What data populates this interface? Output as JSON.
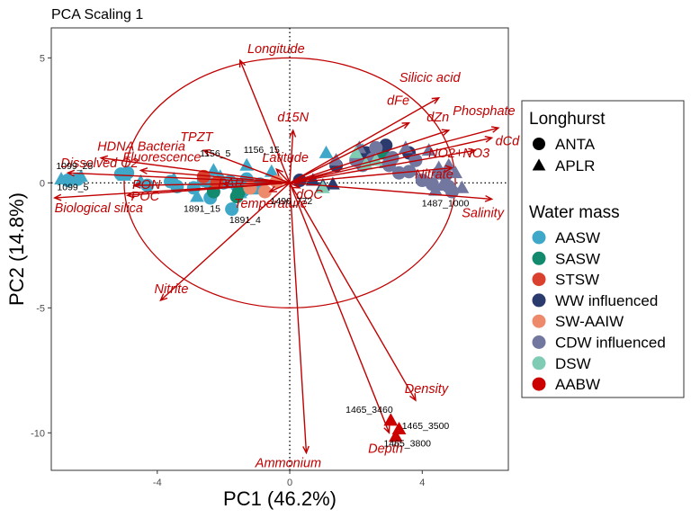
{
  "chart_data": {
    "type": "scatter",
    "title": "PCA Scaling 1",
    "xlabel": "PC1 (46.2%)",
    "ylabel": "PC2 (14.8%)",
    "xlim": [
      -7.2,
      6.6
    ],
    "ylim": [
      -11.5,
      6.2
    ],
    "x_ticks": [
      -4,
      0,
      4
    ],
    "y_ticks": [
      -10,
      -5,
      0,
      5
    ],
    "x_tick_labels": [
      "-4",
      "0",
      "4"
    ],
    "y_tick_labels": [
      "-10",
      "-5",
      "0",
      "5"
    ],
    "reference_lines": {
      "x": 0,
      "y": 0,
      "style": "dotted"
    },
    "grid": false,
    "legend_position": "right",
    "circle": {
      "center": [
        0,
        0
      ],
      "radius": 5.0,
      "color": "#c00000"
    },
    "legend": {
      "shape_title": "Longhurst",
      "shapes": [
        {
          "label": "ANTA",
          "shape": "circle"
        },
        {
          "label": "APLR",
          "shape": "triangle"
        }
      ],
      "color_title": "Water mass",
      "water_masses": [
        {
          "label": "AASW",
          "color": "#3fa8c8"
        },
        {
          "label": "SASW",
          "color": "#138a6e"
        },
        {
          "label": "STSW",
          "color": "#d9412e"
        },
        {
          "label": "WW influenced",
          "color": "#2c3b6e"
        },
        {
          "label": "SW-AAIW",
          "color": "#ee8a6c"
        },
        {
          "label": "CDW influenced",
          "color": "#7277a0"
        },
        {
          "label": "DSW",
          "color": "#7fcbb3"
        },
        {
          "label": "AABW",
          "color": "#cc0000"
        }
      ]
    },
    "loadings": [
      {
        "label": "Longitude",
        "x": -1.5,
        "y": 4.9
      },
      {
        "label": "Silicic acid",
        "x": 4.5,
        "y": 3.4
      },
      {
        "label": "dFe",
        "x": 3.6,
        "y": 2.4
      },
      {
        "label": "dZn",
        "x": 4.8,
        "y": 2.1
      },
      {
        "label": "Phosphate",
        "x": 6.3,
        "y": 2.2
      },
      {
        "label": "dCd",
        "x": 6.1,
        "y": 1.8
      },
      {
        "label": "NO2+NO3",
        "x": 5.6,
        "y": 1.3
      },
      {
        "label": "Nitrate",
        "x": 4.9,
        "y": 0.6
      },
      {
        "label": "Salinity",
        "x": 6.1,
        "y": -0.65
      },
      {
        "label": "d15N",
        "x": 0.1,
        "y": 2.1
      },
      {
        "label": "TPZT",
        "x": -2.6,
        "y": 1.3
      },
      {
        "label": "HDNA Bacteria",
        "x": -5.7,
        "y": 1.0
      },
      {
        "label": "Fluorescence",
        "x": -4.5,
        "y": 0.5
      },
      {
        "label": "Dissolved O2",
        "x": -6.7,
        "y": 0.4
      },
      {
        "label": "Latitude",
        "x": -0.4,
        "y": 0.55
      },
      {
        "label": "PON",
        "x": -4.7,
        "y": -0.1
      },
      {
        "label": "PAR",
        "x": -2.0,
        "y": -0.05
      },
      {
        "label": "POC",
        "x": -4.9,
        "y": -0.5
      },
      {
        "label": "Biological silica",
        "x": -7.1,
        "y": -0.6
      },
      {
        "label": "Temperature",
        "x": -0.6,
        "y": -0.35
      },
      {
        "label": "dOC",
        "x": 0.3,
        "y": -0.2
      },
      {
        "label": "Nitrite",
        "x": -3.9,
        "y": -4.7
      },
      {
        "label": "Density",
        "x": 3.8,
        "y": -8.7
      },
      {
        "label": "Depth",
        "x": 3.0,
        "y": -10.0
      },
      {
        "label": "Ammonium",
        "x": 0.5,
        "y": -10.8
      }
    ],
    "point_labels": [
      {
        "text": "1099_25",
        "x": -6.5,
        "y": 0.55
      },
      {
        "text": "1099_5",
        "x": -6.55,
        "y": -0.3
      },
      {
        "text": "1156_5",
        "x": -2.25,
        "y": 1.05
      },
      {
        "text": "1156_15",
        "x": -0.85,
        "y": 1.2
      },
      {
        "text": "1891_15",
        "x": -2.65,
        "y": -1.15
      },
      {
        "text": "1891_4",
        "x": -1.35,
        "y": -1.6
      },
      {
        "text": "1496_772",
        "x": 0.05,
        "y": -0.85
      },
      {
        "text": "1487_1000",
        "x": 4.7,
        "y": -0.95
      },
      {
        "text": "1465_3460",
        "x": 2.4,
        "y": -9.2
      },
      {
        "text": "1465_3500",
        "x": 4.1,
        "y": -9.85
      },
      {
        "text": "1465_3800",
        "x": 3.55,
        "y": -10.55
      }
    ],
    "series": [
      {
        "water_mass": "AASW",
        "shape": "circle",
        "points": [
          [
            -6.7,
            0.1
          ],
          [
            -6.4,
            0.15
          ],
          [
            -5.1,
            0.35
          ],
          [
            -4.9,
            0.4
          ],
          [
            -4.3,
            -0.1
          ],
          [
            -3.6,
            0.05
          ],
          [
            -3.4,
            -0.15
          ],
          [
            -2.9,
            -0.2
          ],
          [
            -2.6,
            0.1
          ],
          [
            -2.4,
            -0.05
          ],
          [
            -2.0,
            0.0
          ],
          [
            -1.8,
            0.05
          ],
          [
            -1.6,
            -0.1
          ],
          [
            -1.3,
            0.15
          ],
          [
            -0.9,
            -0.05
          ],
          [
            -1.75,
            -1.05
          ],
          [
            -2.4,
            -0.6
          ],
          [
            -1.4,
            -0.3
          ]
        ]
      },
      {
        "water_mass": "AASW",
        "shape": "triangle",
        "points": [
          [
            -6.9,
            0.15
          ],
          [
            -6.3,
            0.25
          ],
          [
            -5.0,
            0.3
          ],
          [
            -4.5,
            0.05
          ],
          [
            -3.5,
            0.15
          ],
          [
            -2.8,
            -0.55
          ],
          [
            -2.3,
            0.5
          ],
          [
            -2.1,
            0.25
          ],
          [
            -1.5,
            -0.4
          ],
          [
            -1.3,
            0.7
          ],
          [
            -1.1,
            -0.25
          ],
          [
            -0.55,
            0.45
          ],
          [
            1.1,
            1.2
          ],
          [
            2.2,
            1.3
          ]
        ]
      },
      {
        "water_mass": "SASW",
        "shape": "circle",
        "points": [
          [
            -2.3,
            -0.35
          ],
          [
            -1.6,
            -0.55
          ],
          [
            -1.55,
            -0.4
          ],
          [
            2.8,
            1.2
          ]
        ]
      },
      {
        "water_mass": "STSW",
        "shape": "circle",
        "points": [
          [
            -2.6,
            0.25
          ],
          [
            -2.2,
            0.0
          ]
        ]
      },
      {
        "water_mass": "WW influenced",
        "shape": "circle",
        "points": [
          [
            0.3,
            0.1
          ],
          [
            1.4,
            0.7
          ],
          [
            2.3,
            1.2
          ],
          [
            2.9,
            1.5
          ],
          [
            3.6,
            1.2
          ]
        ]
      },
      {
        "water_mass": "WW influenced",
        "shape": "triangle",
        "points": [
          [
            0.7,
            0.1
          ],
          [
            1.0,
            -0.1
          ],
          [
            1.3,
            -0.05
          ]
        ]
      },
      {
        "water_mass": "SW-AAIW",
        "shape": "circle",
        "points": [
          [
            -1.2,
            -0.2
          ],
          [
            -0.75,
            -0.35
          ],
          [
            -0.4,
            0.05
          ]
        ]
      },
      {
        "water_mass": "CDW influenced",
        "shape": "circle",
        "points": [
          [
            2.0,
            0.9
          ],
          [
            2.2,
            0.7
          ],
          [
            2.5,
            0.95
          ],
          [
            3.0,
            0.7
          ],
          [
            3.3,
            0.4
          ],
          [
            3.6,
            0.45
          ],
          [
            3.8,
            0.9
          ],
          [
            4.0,
            0.1
          ],
          [
            4.3,
            -0.05
          ],
          [
            4.5,
            0.4
          ],
          [
            4.7,
            0.3
          ],
          [
            4.8,
            -0.15
          ],
          [
            4.9,
            -0.35
          ],
          [
            3.1,
            1.0
          ],
          [
            2.6,
            1.4
          ]
        ]
      },
      {
        "water_mass": "CDW influenced",
        "shape": "triangle",
        "points": [
          [
            1.4,
            0.9
          ],
          [
            2.1,
            1.4
          ],
          [
            2.9,
            0.8
          ],
          [
            3.5,
            1.4
          ],
          [
            4.2,
            1.3
          ],
          [
            4.5,
            0.6
          ],
          [
            4.6,
            -0.1
          ],
          [
            4.8,
            0.7
          ],
          [
            5.0,
            0.4
          ],
          [
            4.4,
            -0.3
          ],
          [
            5.2,
            -0.2
          ],
          [
            3.7,
            0.5
          ]
        ]
      },
      {
        "water_mass": "DSW",
        "shape": "triangle",
        "points": [
          [
            1.0,
            -0.2
          ],
          [
            2.0,
            1.2
          ],
          [
            2.6,
            0.9
          ],
          [
            2.3,
            0.75
          ]
        ]
      },
      {
        "water_mass": "AABW",
        "shape": "triangle",
        "points": [
          [
            3.05,
            -9.5
          ],
          [
            3.3,
            -9.85
          ],
          [
            3.2,
            -10.15
          ]
        ]
      }
    ]
  }
}
